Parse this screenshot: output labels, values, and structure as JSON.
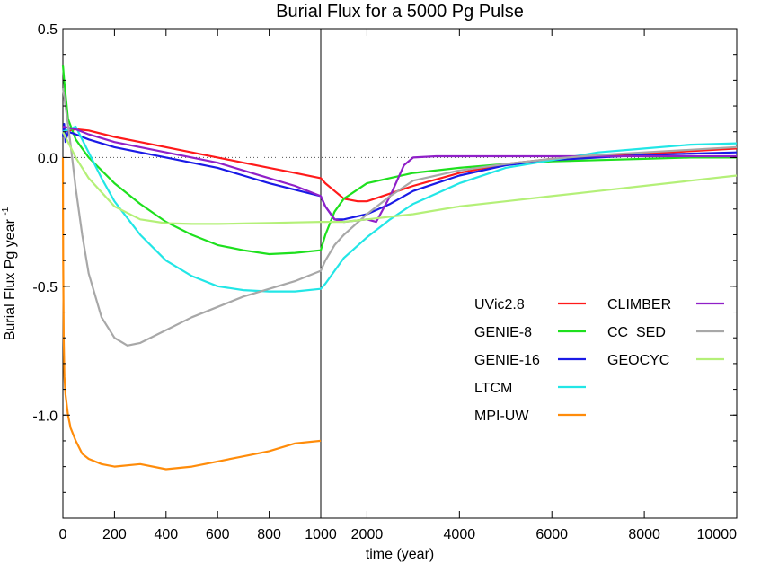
{
  "chart_data": {
    "type": "line",
    "title": "Burial Flux for a 5000 Pg Pulse",
    "xlabel": "time (year)",
    "ylabel": "Burial Flux Pg year",
    "ylabel_superscript": "-1",
    "ylim": [
      -1.4,
      0.5
    ],
    "y_ticks": [
      {
        "value": 0.5,
        "label": "0.5"
      },
      {
        "value": 0.0,
        "label": "0.0"
      },
      {
        "value": -0.5,
        "label": "-0.5"
      },
      {
        "value": -1.0,
        "label": "-1.0"
      }
    ],
    "x_segments": [
      {
        "range": [
          0,
          1000
        ],
        "ticks": [
          0,
          200,
          400,
          600,
          800,
          1000
        ]
      },
      {
        "range": [
          1000,
          10000
        ],
        "ticks": [
          2000,
          4000,
          6000,
          8000,
          10000
        ]
      }
    ],
    "x_tick_labels": [
      "0",
      "200",
      "400",
      "600",
      "800",
      "1000",
      "2000",
      "4000",
      "6000",
      "8000",
      "10000"
    ],
    "reference_line_y": 0.0,
    "break_line_x": 1000,
    "legend_position": "lower-right",
    "series": [
      {
        "name": "UVic2.8",
        "color": "#ff1a1a",
        "points": [
          [
            0,
            0.1
          ],
          [
            50,
            0.11
          ],
          [
            100,
            0.105
          ],
          [
            200,
            0.08
          ],
          [
            300,
            0.06
          ],
          [
            400,
            0.04
          ],
          [
            500,
            0.02
          ],
          [
            600,
            0.0
          ],
          [
            700,
            -0.02
          ],
          [
            800,
            -0.04
          ],
          [
            900,
            -0.06
          ],
          [
            1000,
            -0.08
          ],
          [
            1100,
            -0.1
          ],
          [
            1300,
            -0.13
          ],
          [
            1500,
            -0.16
          ],
          [
            1800,
            -0.17
          ],
          [
            2000,
            -0.17
          ],
          [
            2500,
            -0.14
          ],
          [
            3000,
            -0.11
          ],
          [
            3500,
            -0.085
          ],
          [
            4000,
            -0.06
          ],
          [
            5000,
            -0.025
          ],
          [
            6000,
            -0.005
          ],
          [
            7000,
            0.005
          ],
          [
            8000,
            0.015
          ],
          [
            9000,
            0.025
          ],
          [
            10000,
            0.035
          ]
        ]
      },
      {
        "name": "GENIE-8",
        "color": "#1ee01e",
        "points": [
          [
            0,
            0.36
          ],
          [
            5,
            0.3
          ],
          [
            20,
            0.15
          ],
          [
            50,
            0.07
          ],
          [
            100,
            0.0
          ],
          [
            200,
            -0.1
          ],
          [
            300,
            -0.18
          ],
          [
            400,
            -0.25
          ],
          [
            500,
            -0.3
          ],
          [
            600,
            -0.34
          ],
          [
            700,
            -0.36
          ],
          [
            800,
            -0.375
          ],
          [
            900,
            -0.37
          ],
          [
            1000,
            -0.36
          ],
          [
            1100,
            -0.3
          ],
          [
            1300,
            -0.21
          ],
          [
            1500,
            -0.16
          ],
          [
            2000,
            -0.1
          ],
          [
            3000,
            -0.06
          ],
          [
            4000,
            -0.04
          ],
          [
            5000,
            -0.025
          ],
          [
            6000,
            -0.015
          ],
          [
            7000,
            -0.01
          ],
          [
            8000,
            -0.005
          ],
          [
            9000,
            0.0
          ],
          [
            10000,
            0.0
          ]
        ]
      },
      {
        "name": "GENIE-16",
        "color": "#1a1ae6",
        "points": [
          [
            0,
            0.08
          ],
          [
            5,
            0.13
          ],
          [
            10,
            0.06
          ],
          [
            20,
            0.1
          ],
          [
            50,
            0.09
          ],
          [
            100,
            0.07
          ],
          [
            200,
            0.04
          ],
          [
            300,
            0.02
          ],
          [
            400,
            0.0
          ],
          [
            500,
            -0.02
          ],
          [
            600,
            -0.04
          ],
          [
            700,
            -0.07
          ],
          [
            800,
            -0.1
          ],
          [
            900,
            -0.125
          ],
          [
            1000,
            -0.15
          ],
          [
            1100,
            -0.19
          ],
          [
            1300,
            -0.24
          ],
          [
            1500,
            -0.24
          ],
          [
            2000,
            -0.22
          ],
          [
            2500,
            -0.18
          ],
          [
            3000,
            -0.13
          ],
          [
            3500,
            -0.1
          ],
          [
            4000,
            -0.07
          ],
          [
            5000,
            -0.03
          ],
          [
            6000,
            -0.01
          ],
          [
            7000,
            0.0
          ],
          [
            8000,
            0.01
          ],
          [
            9000,
            0.015
          ],
          [
            10000,
            0.02
          ]
        ]
      },
      {
        "name": "LTCM",
        "color": "#22e6e6",
        "points": [
          [
            0,
            0.1
          ],
          [
            50,
            0.12
          ],
          [
            100,
            0.02
          ],
          [
            150,
            -0.08
          ],
          [
            200,
            -0.17
          ],
          [
            300,
            -0.3
          ],
          [
            400,
            -0.4
          ],
          [
            500,
            -0.46
          ],
          [
            600,
            -0.5
          ],
          [
            700,
            -0.515
          ],
          [
            800,
            -0.52
          ],
          [
            900,
            -0.52
          ],
          [
            1000,
            -0.51
          ],
          [
            1100,
            -0.49
          ],
          [
            1300,
            -0.44
          ],
          [
            1500,
            -0.39
          ],
          [
            2000,
            -0.31
          ],
          [
            2500,
            -0.24
          ],
          [
            3000,
            -0.18
          ],
          [
            3500,
            -0.14
          ],
          [
            4000,
            -0.1
          ],
          [
            5000,
            -0.04
          ],
          [
            6000,
            -0.01
          ],
          [
            7000,
            0.02
          ],
          [
            8000,
            0.035
          ],
          [
            9000,
            0.05
          ],
          [
            10000,
            0.055
          ]
        ]
      },
      {
        "name": "MPI-UW",
        "color": "#ff8c0a",
        "points": [
          [
            0,
            0.0
          ],
          [
            1,
            -0.4
          ],
          [
            3,
            -0.7
          ],
          [
            6,
            -0.85
          ],
          [
            10,
            -0.92
          ],
          [
            20,
            -1.0
          ],
          [
            30,
            -1.05
          ],
          [
            50,
            -1.1
          ],
          [
            75,
            -1.15
          ],
          [
            100,
            -1.17
          ],
          [
            150,
            -1.19
          ],
          [
            200,
            -1.2
          ],
          [
            300,
            -1.19
          ],
          [
            400,
            -1.21
          ],
          [
            500,
            -1.2
          ],
          [
            600,
            -1.18
          ],
          [
            700,
            -1.16
          ],
          [
            800,
            -1.14
          ],
          [
            900,
            -1.11
          ],
          [
            1000,
            -1.1
          ]
        ]
      },
      {
        "name": "CLIMBER",
        "color": "#9020c8",
        "points": [
          [
            0,
            0.12
          ],
          [
            50,
            0.11
          ],
          [
            100,
            0.09
          ],
          [
            200,
            0.06
          ],
          [
            300,
            0.04
          ],
          [
            400,
            0.02
          ],
          [
            500,
            0.0
          ],
          [
            600,
            -0.02
          ],
          [
            700,
            -0.05
          ],
          [
            800,
            -0.08
          ],
          [
            900,
            -0.11
          ],
          [
            1000,
            -0.15
          ],
          [
            1100,
            -0.19
          ],
          [
            1300,
            -0.24
          ],
          [
            1500,
            -0.25
          ],
          [
            2000,
            -0.24
          ],
          [
            2200,
            -0.25
          ],
          [
            2500,
            -0.15
          ],
          [
            2800,
            -0.03
          ],
          [
            3000,
            0.0
          ],
          [
            3500,
            0.005
          ],
          [
            4000,
            0.005
          ],
          [
            5000,
            0.005
          ],
          [
            6000,
            0.005
          ],
          [
            7000,
            0.005
          ],
          [
            8000,
            0.005
          ],
          [
            9000,
            0.005
          ],
          [
            10000,
            0.005
          ]
        ]
      },
      {
        "name": "CC_SED",
        "color": "#a8a8a8",
        "points": [
          [
            0,
            0.27
          ],
          [
            10,
            0.2
          ],
          [
            30,
            0.05
          ],
          [
            50,
            -0.12
          ],
          [
            75,
            -0.3
          ],
          [
            100,
            -0.45
          ],
          [
            150,
            -0.62
          ],
          [
            200,
            -0.7
          ],
          [
            250,
            -0.73
          ],
          [
            300,
            -0.72
          ],
          [
            400,
            -0.67
          ],
          [
            500,
            -0.62
          ],
          [
            600,
            -0.58
          ],
          [
            700,
            -0.54
          ],
          [
            800,
            -0.51
          ],
          [
            900,
            -0.48
          ],
          [
            1000,
            -0.44
          ],
          [
            1100,
            -0.4
          ],
          [
            1300,
            -0.34
          ],
          [
            1500,
            -0.3
          ],
          [
            2000,
            -0.22
          ],
          [
            2500,
            -0.15
          ],
          [
            3000,
            -0.09
          ],
          [
            4000,
            -0.05
          ],
          [
            5000,
            -0.025
          ],
          [
            6000,
            -0.005
          ],
          [
            7000,
            0.01
          ],
          [
            8000,
            0.02
          ],
          [
            9000,
            0.03
          ],
          [
            10000,
            0.04
          ]
        ]
      },
      {
        "name": "GEOCYC",
        "color": "#b4f078",
        "points": [
          [
            0,
            0.1
          ],
          [
            50,
            0.0
          ],
          [
            100,
            -0.08
          ],
          [
            200,
            -0.19
          ],
          [
            300,
            -0.24
          ],
          [
            400,
            -0.255
          ],
          [
            500,
            -0.258
          ],
          [
            600,
            -0.258
          ],
          [
            700,
            -0.256
          ],
          [
            800,
            -0.254
          ],
          [
            900,
            -0.252
          ],
          [
            1000,
            -0.25
          ],
          [
            1500,
            -0.25
          ],
          [
            2000,
            -0.24
          ],
          [
            3000,
            -0.22
          ],
          [
            4000,
            -0.19
          ],
          [
            5000,
            -0.17
          ],
          [
            6000,
            -0.15
          ],
          [
            7000,
            -0.13
          ],
          [
            8000,
            -0.11
          ],
          [
            9000,
            -0.09
          ],
          [
            10000,
            -0.07
          ]
        ]
      }
    ]
  }
}
